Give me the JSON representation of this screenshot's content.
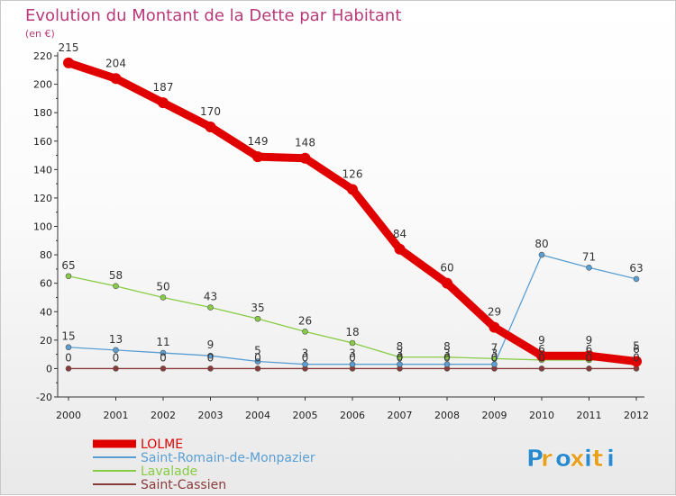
{
  "chart_data": {
    "type": "line",
    "title": "Evolution du Montant de la Dette par Habitant",
    "subtitle": "(en €)",
    "x": [
      "2000",
      "2001",
      "2002",
      "2003",
      "2004",
      "2005",
      "2006",
      "2007",
      "2008",
      "2009",
      "2010",
      "2011",
      "2012"
    ],
    "ylim": [
      -20,
      220
    ],
    "yticks": [
      -20,
      0,
      20,
      40,
      60,
      80,
      100,
      120,
      140,
      160,
      180,
      200,
      220
    ],
    "grid": false,
    "legend_position": "bottom-left",
    "series": [
      {
        "name": "LOLME",
        "color": "#e00000",
        "values": [
          215,
          204,
          187,
          170,
          149,
          148,
          126,
          84,
          60,
          29,
          9,
          9,
          5
        ],
        "labels": [
          "215",
          "204",
          "187",
          "170",
          "149",
          "148",
          "126",
          "84",
          "60",
          "29",
          "9",
          "9",
          "5"
        ]
      },
      {
        "name": "Saint-Romain-de-Monpazier",
        "color": "#5a9fd4",
        "values": [
          15,
          13,
          11,
          9,
          5,
          3,
          3,
          3,
          3,
          3,
          80,
          71,
          63
        ],
        "labels": [
          "15",
          "13",
          "11",
          "9",
          "5",
          "3",
          "3",
          "3",
          "3",
          "3",
          "80",
          "71",
          "63"
        ]
      },
      {
        "name": "Lavalade",
        "color": "#88cc44",
        "values": [
          65,
          58,
          50,
          43,
          35,
          26,
          18,
          8,
          8,
          7,
          6,
          6,
          6
        ],
        "labels": [
          "65",
          "58",
          "50",
          "43",
          "35",
          "26",
          "18",
          "8",
          "8",
          "7",
          "6",
          "6",
          "6"
        ]
      },
      {
        "name": "Saint-Cassien",
        "color": "#8b3a3a",
        "values": [
          0,
          0,
          0,
          0,
          0,
          0,
          0,
          0,
          0,
          0,
          0,
          0,
          0
        ],
        "labels": [
          "0",
          "0",
          "0",
          "0",
          "0",
          "0",
          "0",
          "0",
          "0",
          "0",
          "0",
          "0",
          "0"
        ]
      }
    ]
  },
  "logo": {
    "text": "Proxiti",
    "letters": [
      "P",
      "r",
      "o",
      "x",
      "i",
      "t",
      "i"
    ],
    "colors": [
      "#2a8ad0",
      "#e8a020",
      "#2a8ad0",
      "#e8a020",
      "#2a8ad0",
      "#e8a020",
      "#2a8ad0"
    ]
  }
}
